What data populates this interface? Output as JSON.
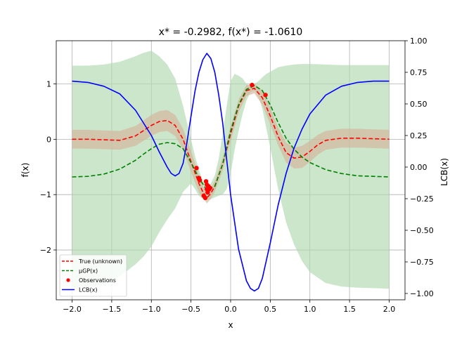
{
  "chart_data": {
    "type": "line",
    "title": "x* = -0.2982, f(x*) = -1.0610",
    "xlabel": "x",
    "ylabel": "f(x)",
    "y2label": "LCB(x)",
    "xlim": [
      -2.2,
      2.2
    ],
    "ylim": [
      -2.9,
      1.78
    ],
    "y2lim": [
      -1.05,
      1.0
    ],
    "xticks": [
      -2.0,
      -1.5,
      -1.0,
      -0.5,
      0.0,
      0.5,
      1.0,
      1.5,
      2.0
    ],
    "xtick_labels": [
      "−2.0",
      "−1.5",
      "−1.0",
      "−0.5",
      "0.0",
      "0.5",
      "1.0",
      "1.5",
      "2.0"
    ],
    "yticks": [
      -2,
      -1,
      0,
      1
    ],
    "ytick_labels": [
      "−2",
      "−1",
      "0",
      "1"
    ],
    "y2ticks": [
      -1.0,
      -0.75,
      -0.5,
      -0.25,
      0.0,
      0.25,
      0.5,
      0.75,
      1.0
    ],
    "y2tick_labels": [
      "−1.00",
      "−0.75",
      "−0.50",
      "−0.25",
      "0.00",
      "0.25",
      "0.50",
      "0.75",
      "1.00"
    ],
    "grid": true,
    "legend_position": "lower-left",
    "legend": [
      {
        "label": "True (unknown)",
        "color": "#ff0000",
        "style": "dashed"
      },
      {
        "label": "μGP(x)",
        "color": "#008000",
        "style": "dashed"
      },
      {
        "label": "Observations",
        "color": "#ff0000",
        "style": "marker"
      },
      {
        "label": "LCB(x)",
        "color": "#0000ff",
        "style": "solid"
      }
    ],
    "series": [
      {
        "name": "True (unknown)",
        "color": "#ff0000",
        "axis": "left",
        "x": [
          -2.0,
          -1.8,
          -1.6,
          -1.4,
          -1.2,
          -1.0,
          -0.9,
          -0.8,
          -0.7,
          -0.6,
          -0.5,
          -0.4,
          -0.35,
          -0.3,
          -0.25,
          -0.2,
          -0.1,
          0.0,
          0.1,
          0.2,
          0.3,
          0.4,
          0.5,
          0.6,
          0.7,
          0.8,
          0.9,
          1.0,
          1.1,
          1.2,
          1.4,
          1.6,
          1.8,
          2.0
        ],
        "y": [
          0.0,
          0.0,
          -0.01,
          -0.02,
          0.06,
          0.25,
          0.32,
          0.34,
          0.25,
          0.0,
          -0.4,
          -0.8,
          -0.95,
          -1.06,
          -0.98,
          -0.85,
          -0.45,
          0.1,
          0.6,
          0.88,
          0.92,
          0.75,
          0.42,
          0.05,
          -0.24,
          -0.34,
          -0.32,
          -0.22,
          -0.1,
          -0.02,
          0.02,
          0.02,
          0.01,
          0.0
        ]
      },
      {
        "name": "μGP(x)",
        "color": "#008000",
        "axis": "left",
        "x": [
          -2.0,
          -1.8,
          -1.6,
          -1.4,
          -1.2,
          -1.1,
          -1.0,
          -0.9,
          -0.8,
          -0.7,
          -0.6,
          -0.5,
          -0.4,
          -0.3,
          -0.2,
          -0.1,
          0.0,
          0.1,
          0.2,
          0.3,
          0.4,
          0.5,
          0.6,
          0.7,
          0.8,
          0.9,
          1.0,
          1.2,
          1.4,
          1.6,
          1.8,
          2.0
        ],
        "y": [
          -0.68,
          -0.67,
          -0.63,
          -0.54,
          -0.38,
          -0.27,
          -0.17,
          -0.09,
          -0.06,
          -0.08,
          -0.17,
          -0.42,
          -0.7,
          -0.92,
          -0.85,
          -0.45,
          0.15,
          0.62,
          0.9,
          0.97,
          0.88,
          0.62,
          0.3,
          0.02,
          -0.18,
          -0.32,
          -0.42,
          -0.55,
          -0.62,
          -0.66,
          -0.67,
          -0.68
        ]
      },
      {
        "name": "LCB(x)",
        "color": "#0000ff",
        "axis": "right",
        "x": [
          -2.0,
          -1.8,
          -1.6,
          -1.4,
          -1.2,
          -1.0,
          -0.9,
          -0.8,
          -0.75,
          -0.7,
          -0.65,
          -0.6,
          -0.55,
          -0.5,
          -0.45,
          -0.4,
          -0.35,
          -0.3,
          -0.25,
          -0.2,
          -0.15,
          -0.1,
          -0.05,
          0.0,
          0.1,
          0.2,
          0.25,
          0.3,
          0.35,
          0.4,
          0.5,
          0.6,
          0.7,
          0.8,
          0.9,
          1.0,
          1.2,
          1.4,
          1.6,
          1.8,
          2.0
        ],
        "y": [
          0.68,
          0.67,
          0.64,
          0.58,
          0.45,
          0.25,
          0.12,
          0.0,
          -0.05,
          -0.07,
          -0.05,
          0.03,
          0.2,
          0.4,
          0.6,
          0.75,
          0.85,
          0.9,
          0.86,
          0.75,
          0.57,
          0.35,
          0.06,
          -0.22,
          -0.65,
          -0.9,
          -0.96,
          -0.98,
          -0.96,
          -0.88,
          -0.6,
          -0.3,
          -0.05,
          0.15,
          0.3,
          0.42,
          0.57,
          0.64,
          0.67,
          0.68,
          0.68
        ]
      }
    ],
    "bands": [
      {
        "name": "GP confidence",
        "color": "#b0d8b0",
        "x": [
          -2.0,
          -1.8,
          -1.6,
          -1.4,
          -1.2,
          -1.1,
          -1.0,
          -0.9,
          -0.8,
          -0.7,
          -0.6,
          -0.5,
          -0.45,
          -0.4,
          -0.35,
          -0.3,
          -0.25,
          -0.2,
          -0.15,
          -0.1,
          -0.05,
          0.0,
          0.05,
          0.1,
          0.15,
          0.2,
          0.25,
          0.3,
          0.35,
          0.4,
          0.45,
          0.5,
          0.6,
          0.7,
          0.8,
          0.9,
          1.0,
          1.2,
          1.4,
          1.6,
          1.8,
          2.0
        ],
        "upper": [
          1.33,
          1.33,
          1.35,
          1.4,
          1.5,
          1.56,
          1.6,
          1.5,
          1.35,
          1.1,
          0.6,
          0.0,
          -0.3,
          -0.55,
          -0.75,
          -0.85,
          -0.8,
          -0.65,
          -0.35,
          0.1,
          0.6,
          1.05,
          1.18,
          1.15,
          1.1,
          1.0,
          0.95,
          1.0,
          1.05,
          1.12,
          1.18,
          1.22,
          1.3,
          1.33,
          1.35,
          1.36,
          1.36,
          1.35,
          1.34,
          1.34,
          1.34,
          1.34
        ],
        "lower": [
          -2.68,
          -2.67,
          -2.62,
          -2.48,
          -2.26,
          -2.12,
          -1.94,
          -1.68,
          -1.45,
          -1.25,
          -0.95,
          -0.8,
          -0.9,
          -1.02,
          -1.08,
          -1.1,
          -1.08,
          -1.05,
          -1.02,
          -1.0,
          -0.9,
          -0.62,
          -0.2,
          0.15,
          0.45,
          0.7,
          0.85,
          0.88,
          0.78,
          0.55,
          0.2,
          -0.15,
          -0.9,
          -1.5,
          -1.9,
          -2.2,
          -2.4,
          -2.6,
          -2.66,
          -2.68,
          -2.69,
          -2.7
        ]
      },
      {
        "name": "True uncertainty",
        "color": "#d4b59a",
        "x": [
          -2.0,
          -1.8,
          -1.6,
          -1.4,
          -1.2,
          -1.0,
          -0.9,
          -0.8,
          -0.7,
          -0.6,
          -0.5,
          -0.4,
          -0.35,
          -0.3,
          -0.25,
          -0.2,
          -0.1,
          0.0,
          0.1,
          0.2,
          0.3,
          0.4,
          0.5,
          0.6,
          0.7,
          0.8,
          0.9,
          1.0,
          1.1,
          1.2,
          1.4,
          1.6,
          1.8,
          2.0
        ],
        "upper": [
          0.17,
          0.17,
          0.16,
          0.15,
          0.24,
          0.44,
          0.51,
          0.53,
          0.44,
          0.19,
          -0.21,
          -0.64,
          -0.85,
          -0.96,
          -0.88,
          -0.75,
          -0.33,
          0.24,
          0.72,
          0.98,
          1.01,
          0.88,
          0.57,
          0.21,
          -0.06,
          -0.15,
          -0.12,
          -0.03,
          0.08,
          0.15,
          0.19,
          0.19,
          0.18,
          0.17
        ],
        "lower": [
          -0.17,
          -0.17,
          -0.18,
          -0.19,
          -0.12,
          0.06,
          0.13,
          0.15,
          0.06,
          -0.19,
          -0.59,
          -0.96,
          -1.05,
          -1.16,
          -1.08,
          -0.95,
          -0.57,
          -0.04,
          0.48,
          0.78,
          0.83,
          0.62,
          0.27,
          -0.11,
          -0.42,
          -0.53,
          -0.52,
          -0.41,
          -0.28,
          -0.19,
          -0.15,
          -0.15,
          -0.16,
          -0.17
        ]
      }
    ],
    "observations": {
      "name": "Observations",
      "color": "#ff0000",
      "x": [
        -0.43,
        -0.4,
        -0.39,
        -0.34,
        -0.32,
        -0.31,
        -0.3,
        -0.3,
        -0.29,
        -0.28,
        -0.27,
        -0.26,
        0.27,
        0.44
      ],
      "y": [
        -0.52,
        -0.7,
        -0.74,
        -1.02,
        -1.06,
        -0.76,
        -0.82,
        -0.9,
        -0.96,
        -0.85,
        -0.9,
        -0.88,
        0.98,
        0.8
      ]
    }
  }
}
